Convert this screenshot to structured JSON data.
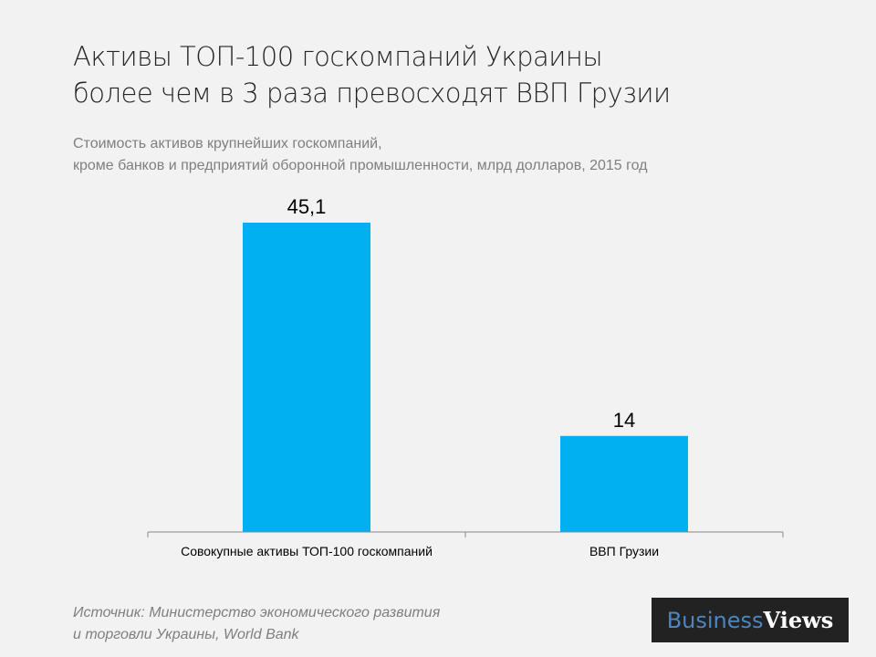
{
  "header": {
    "title_line1": "Активы ТОП-100 госкомпаний Украины",
    "title_line2": "более чем в 3 раза превосходят ВВП Грузии",
    "subtitle_line1": "Стоимость активов крупнейших  госкомпаний,",
    "subtitle_line2": "кроме банков и предприятий оборонной промышленности, млрд долларов, 2015 год"
  },
  "footer": {
    "source_line1": "Источник: Министерство экономического развития",
    "source_line2": "и торговли Украины, World Bank",
    "logo_part1": "Business",
    "logo_part2": "Views"
  },
  "chart_data": {
    "type": "bar",
    "categories": [
      "Совокупные активы ТОП-100 госкомпаний",
      "ВВП Грузии"
    ],
    "values": [
      45.1,
      14
    ],
    "value_labels": [
      "45,1",
      "14"
    ],
    "ylim": [
      0,
      45.1
    ],
    "grid": false,
    "color": "#00b0f0"
  }
}
